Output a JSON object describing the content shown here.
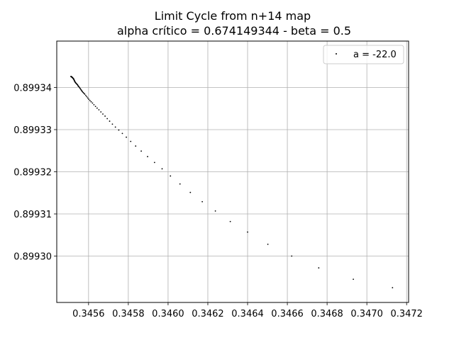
{
  "chart_data": {
    "type": "scatter",
    "title": "Limit Cycle from n+14 map",
    "subtitle": "alpha crítico = 0.674149344 - beta = 0.5",
    "xlabel": "",
    "ylabel": "",
    "xlim": [
      0.34544,
      0.34721
    ],
    "ylim": [
      0.899289,
      0.899351
    ],
    "grid": true,
    "legend_position": "top-right",
    "x_ticks": [
      0.3456,
      0.3458,
      0.346,
      0.3462,
      0.3464,
      0.3466,
      0.3468,
      0.347,
      0.3472
    ],
    "x_tick_labels": [
      "0.3456",
      "0.3458",
      "0.3460",
      "0.3462",
      "0.3464",
      "0.3466",
      "0.3468",
      "0.3470",
      "0.3472"
    ],
    "y_ticks": [
      0.8993,
      0.89931,
      0.89932,
      0.89933,
      0.89934
    ],
    "y_tick_labels": [
      "0.89930",
      "0.89931",
      "0.89932",
      "0.89933",
      "0.89934"
    ],
    "series": [
      {
        "name": "a = -22.0",
        "color": "#000000",
        "x": [
          0.347129,
          0.346932,
          0.346758,
          0.346622,
          0.346502,
          0.3464,
          0.346313,
          0.346238,
          0.346172,
          0.346112,
          0.34606,
          0.346012,
          0.34597,
          0.345932,
          0.345897,
          0.345865,
          0.345837,
          0.345812,
          0.34579,
          0.34577,
          0.345752,
          0.345735,
          0.34572,
          0.345706,
          0.345694,
          0.345683,
          0.345672,
          0.345662,
          0.345652,
          0.345643,
          0.345635,
          0.345627,
          0.34562,
          0.345613,
          0.345607,
          0.345601,
          0.345596,
          0.345591,
          0.345586,
          0.345581,
          0.345577,
          0.345573,
          0.345569,
          0.345566,
          0.345563,
          0.34556,
          0.345557,
          0.345554,
          0.345551,
          0.345549,
          0.345547,
          0.345545,
          0.345543,
          0.345541,
          0.345539,
          0.345537,
          0.345535,
          0.345534,
          0.345532,
          0.345531,
          0.34553,
          0.345529,
          0.345528,
          0.345527,
          0.345526,
          0.345525,
          0.345524,
          0.345523,
          0.345522,
          0.345521,
          0.34552,
          0.345519,
          0.345518,
          0.345517,
          0.345516,
          0.345515,
          0.345514,
          0.345513,
          0.345512,
          0.345511
        ],
        "y": [
          0.8992925,
          0.8992945,
          0.8992972,
          0.8993,
          0.8993028,
          0.8993057,
          0.8993082,
          0.8993107,
          0.8993129,
          0.8993151,
          0.8993171,
          0.899319,
          0.8993207,
          0.8993222,
          0.8993236,
          0.8993249,
          0.8993261,
          0.8993272,
          0.8993282,
          0.8993291,
          0.8993299,
          0.8993306,
          0.8993313,
          0.899332,
          0.8993326,
          0.8993332,
          0.8993337,
          0.8993342,
          0.8993347,
          0.8993351,
          0.8993355,
          0.8993359,
          0.8993363,
          0.8993366,
          0.8993369,
          0.8993372,
          0.8993375,
          0.8993378,
          0.8993381,
          0.8993384,
          0.8993386,
          0.8993388,
          0.899339,
          0.8993392,
          0.8993394,
          0.8993396,
          0.8993398,
          0.89934,
          0.8993402,
          0.8993403,
          0.8993404,
          0.8993406,
          0.8993407,
          0.8993408,
          0.8993409,
          0.899341,
          0.8993411,
          0.8993412,
          0.8993413,
          0.8993414,
          0.8993415,
          0.8993416,
          0.8993417,
          0.8993418,
          0.8993419,
          0.899342,
          0.8993421,
          0.8993421,
          0.8993422,
          0.8993422,
          0.8993423,
          0.8993423,
          0.8993424,
          0.8993424,
          0.8993425,
          0.8993425,
          0.8993425,
          0.8993426,
          0.8993426,
          0.8993426
        ]
      }
    ]
  }
}
